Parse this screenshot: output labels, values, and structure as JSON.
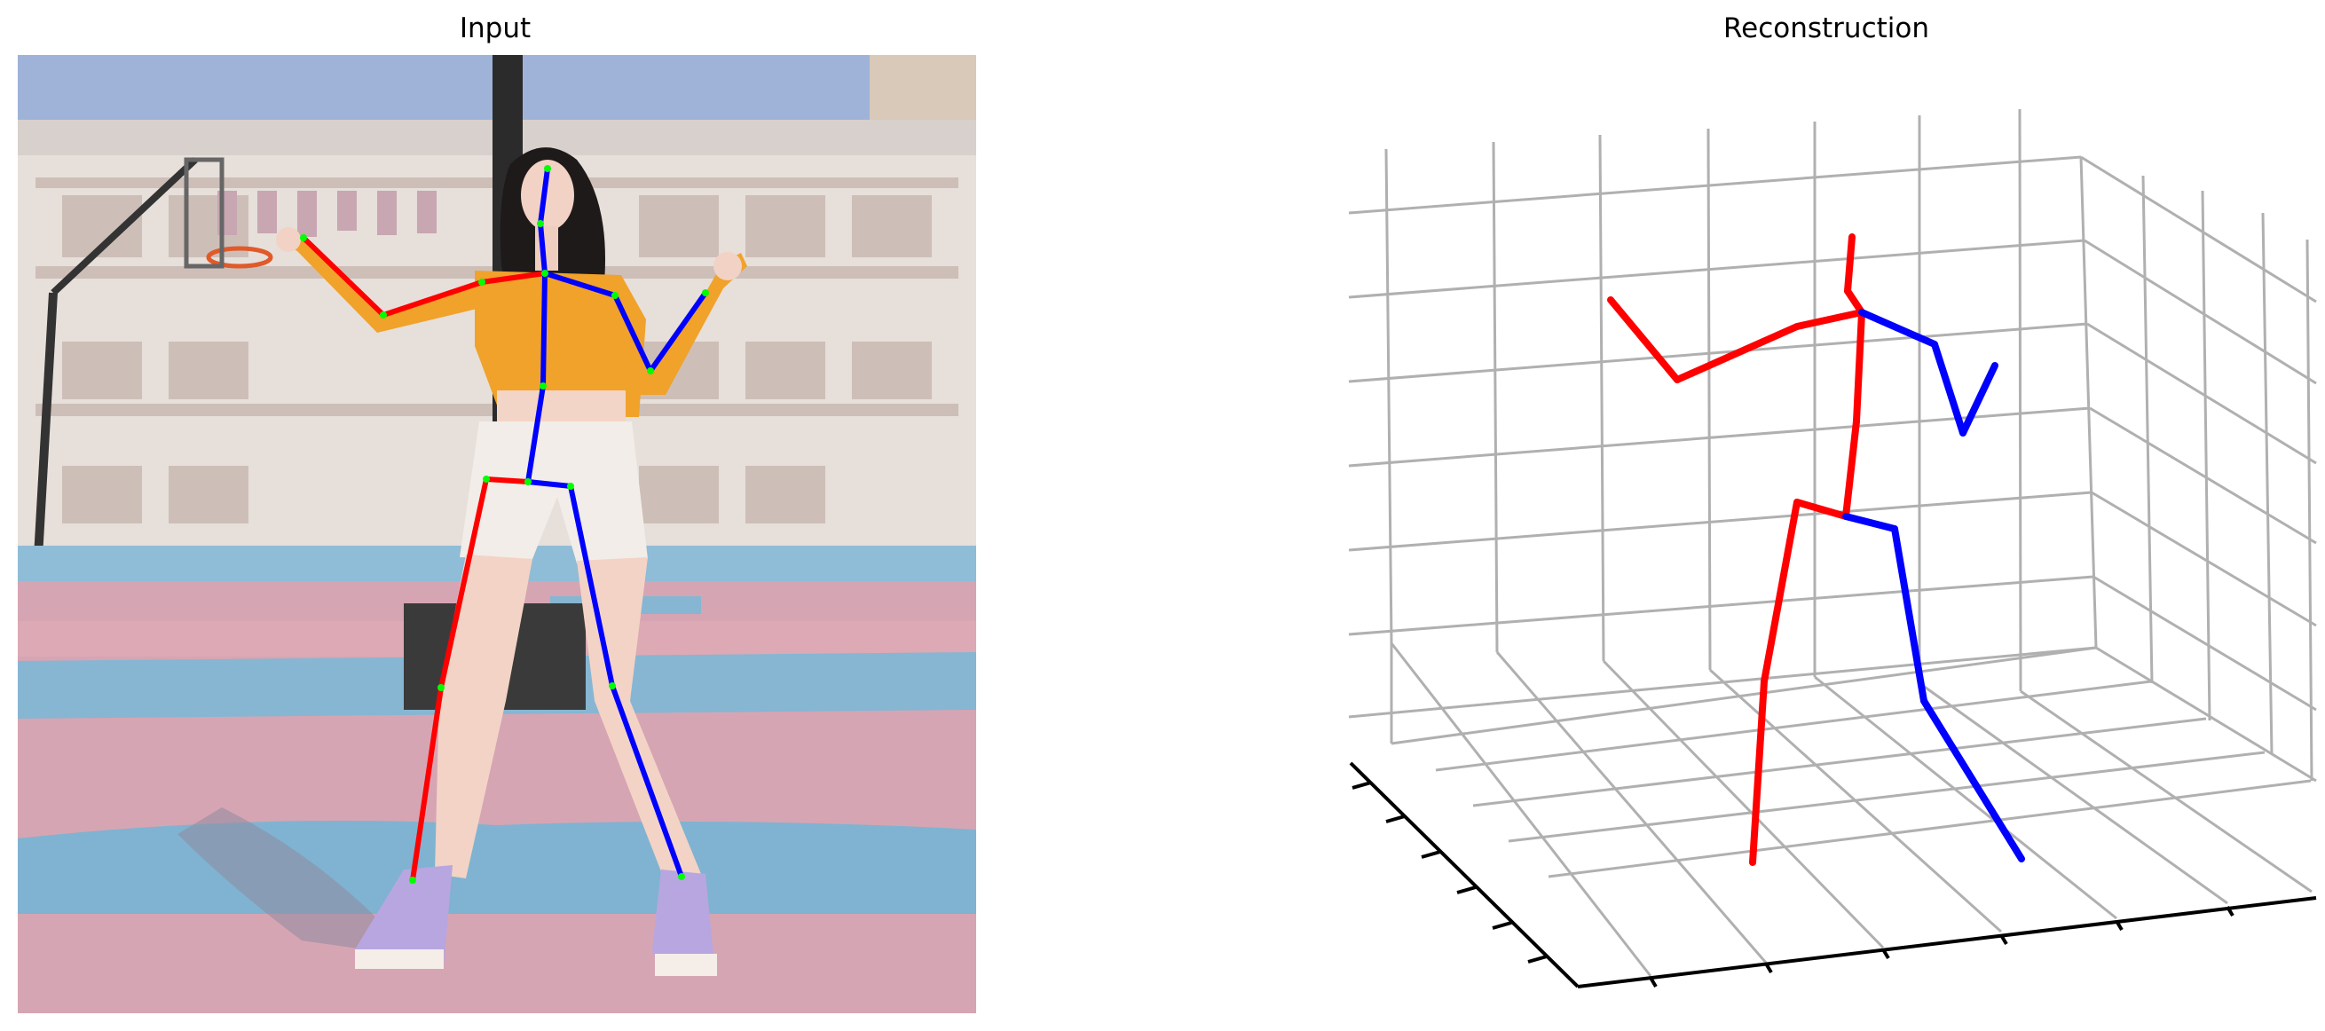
{
  "panels": {
    "left_title": "Input",
    "right_title": "Reconstruction"
  },
  "colors": {
    "left_limb": "#ff0000",
    "right_limb": "#0000ff",
    "joint": "#00ff00",
    "grid": "#b0b0b0",
    "axis": "#000000"
  },
  "photo": {
    "description_visible": false,
    "subject": "person-standing-on-basketball-court",
    "shirt_color": "#f0a22a",
    "shorts_color": "#f2ede8",
    "court_pink": "#d9a3b0",
    "court_blue": "#86b6d2",
    "sky_color": "#9fb3d9",
    "building_color": "#e6ddd8"
  }
}
